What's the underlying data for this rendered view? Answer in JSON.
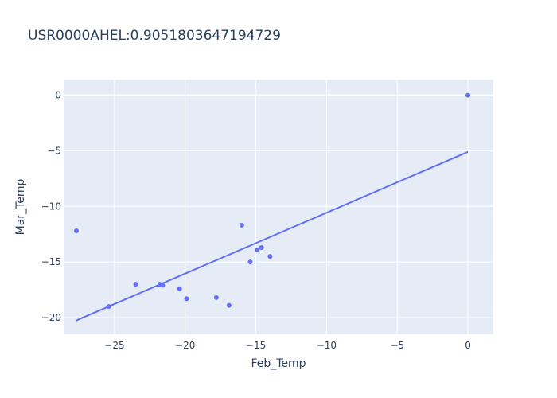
{
  "chart_data": {
    "type": "scatter",
    "title": "USR0000AHEL:0.9051803647194729",
    "xlabel": "Feb_Temp",
    "ylabel": "Mar_Temp",
    "xlim": [
      -28.6,
      1.8
    ],
    "ylim": [
      -21.5,
      1.4
    ],
    "x_ticks": [
      -25,
      -20,
      -15,
      -10,
      -5,
      0
    ],
    "x_tick_labels": [
      "−25",
      "−20",
      "−15",
      "−10",
      "−5",
      "0"
    ],
    "y_ticks": [
      0,
      -5,
      -10,
      -15,
      -20
    ],
    "y_tick_labels": [
      "0",
      "−5",
      "−10",
      "−15",
      "−20"
    ],
    "grid": true,
    "background": "#e5ecf6",
    "marker_color": "#636efa",
    "points": [
      {
        "x": -27.7,
        "y": -12.2
      },
      {
        "x": -25.4,
        "y": -19.0
      },
      {
        "x": -23.5,
        "y": -17.0
      },
      {
        "x": -21.8,
        "y": -17.0
      },
      {
        "x": -21.6,
        "y": -17.1
      },
      {
        "x": -20.4,
        "y": -17.4
      },
      {
        "x": -19.9,
        "y": -18.3
      },
      {
        "x": -17.8,
        "y": -18.2
      },
      {
        "x": -16.9,
        "y": -18.9
      },
      {
        "x": -16.0,
        "y": -11.7
      },
      {
        "x": -15.4,
        "y": -15.0
      },
      {
        "x": -14.9,
        "y": -13.9
      },
      {
        "x": -14.6,
        "y": -13.7
      },
      {
        "x": -14.0,
        "y": -14.5
      },
      {
        "x": 0.0,
        "y": 0.0
      }
    ],
    "trendline": {
      "x": [
        -27.7,
        0.0
      ],
      "y": [
        -20.25,
        -5.1
      ]
    }
  }
}
